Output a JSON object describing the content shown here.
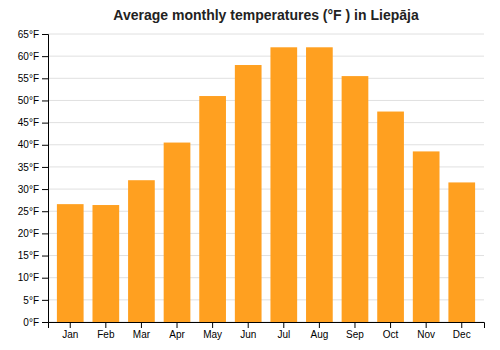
{
  "chart_data": {
    "type": "bar",
    "title": "Average monthly temperatures (°F ) in Liepāja",
    "categories": [
      "Jan",
      "Feb",
      "Mar",
      "Apr",
      "May",
      "Jun",
      "Jul",
      "Aug",
      "Sep",
      "Oct",
      "Nov",
      "Dec"
    ],
    "values": [
      26.6,
      26.4,
      32.0,
      40.5,
      51.0,
      58.0,
      62.0,
      62.0,
      55.5,
      47.5,
      38.5,
      31.5
    ],
    "color": "#FFA020",
    "ylim": [
      0,
      65
    ],
    "yticks": [
      {
        "value": 0,
        "label": "0°F"
      },
      {
        "value": 5,
        "label": "5°F"
      },
      {
        "value": 10,
        "label": "10°F"
      },
      {
        "value": 15,
        "label": "15°F"
      },
      {
        "value": 20,
        "label": "20°F"
      },
      {
        "value": 25,
        "label": "25°F"
      },
      {
        "value": 30,
        "label": "30°F"
      },
      {
        "value": 35,
        "label": "35°F"
      },
      {
        "value": 40,
        "label": "40°F"
      },
      {
        "value": 45,
        "label": "45°F"
      },
      {
        "value": 50,
        "label": "50°F"
      },
      {
        "value": 55,
        "label": "55°F"
      },
      {
        "value": 60,
        "label": "60°F"
      },
      {
        "value": 65,
        "label": "65°F"
      }
    ],
    "grid": true
  }
}
